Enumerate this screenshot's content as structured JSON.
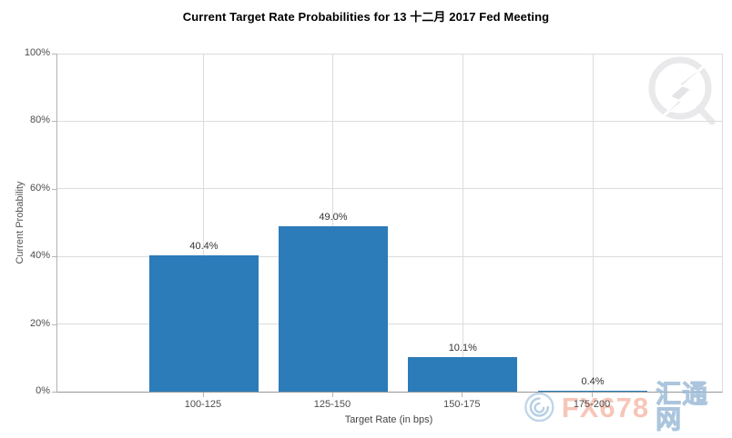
{
  "title": "Current Target Rate Probabilities for 13 十二月 2017 Fed Meeting",
  "chart_data": {
    "type": "bar",
    "categories": [
      "100-125",
      "125-150",
      "150-175",
      "175-200"
    ],
    "values": [
      40.4,
      49.0,
      10.1,
      0.4
    ],
    "value_labels": [
      "40.4%",
      "49.0%",
      "10.1%",
      "0.4%"
    ],
    "title": "Current Target Rate Probabilities for 13 十二月 2017 Fed Meeting",
    "xlabel": "Target Rate (in bps)",
    "ylabel": "Current Probability",
    "ylim": [
      0,
      100
    ],
    "ytick_step": 20,
    "ytick_labels": [
      "0%",
      "20%",
      "40%",
      "60%",
      "80%",
      "100%"
    ],
    "grid": true,
    "legend": "none",
    "layout": {
      "category_centers_pct": [
        22.05,
        41.5,
        61.0,
        80.55
      ],
      "bar_width_pct": 16.4
    }
  },
  "watermarks": {
    "site_name_latin": "FX678",
    "site_name_cjk": "汇通网"
  },
  "colors": {
    "bar": "#2b7cb9",
    "grid": "#dcdcdc",
    "axis": "#b3b3b3",
    "watermark_orange": "#f0997f",
    "watermark_blue": "#aec9e2"
  }
}
